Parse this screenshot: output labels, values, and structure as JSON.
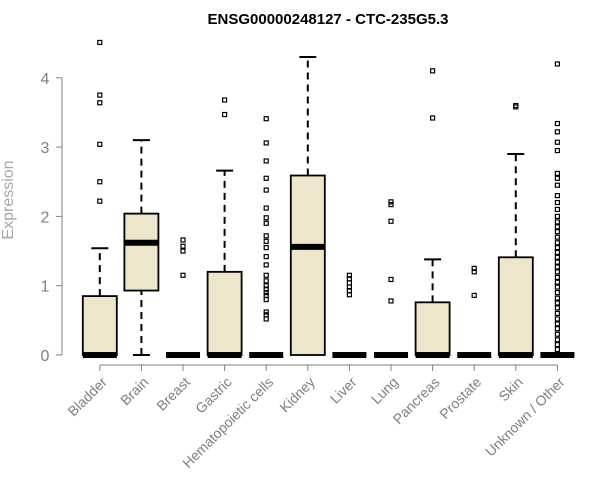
{
  "chart_data": {
    "type": "boxplot",
    "title": "ENSG00000248127 - CTC-235G5.3",
    "xlabel": "",
    "ylabel": "Expression",
    "ylim": [
      0,
      4.55
    ],
    "yticks": [
      0,
      1,
      2,
      3,
      4
    ],
    "box_color": "#ede6cc",
    "categories": [
      "Bladder",
      "Brain",
      "Breast",
      "Gastric",
      "Hematopoietic cells",
      "Kidney",
      "Liver",
      "Lung",
      "Pancreas",
      "Prostate",
      "Skin",
      "Unknown / Other"
    ],
    "boxes": [
      {
        "q1": 0,
        "median": 0,
        "q3": 0.85,
        "whisker_low": 0,
        "whisker_high": 1.54,
        "outliers": [
          2.22,
          2.5,
          3.04,
          3.64,
          3.75,
          4.51
        ]
      },
      {
        "q1": 0.93,
        "median": 1.62,
        "q3": 2.04,
        "whisker_low": 0,
        "whisker_high": 3.1,
        "outliers": []
      },
      {
        "q1": 0,
        "median": 0,
        "q3": 0,
        "whisker_low": 0,
        "whisker_high": 0,
        "outliers": [
          1.15,
          1.5,
          1.57,
          1.66
        ]
      },
      {
        "q1": 0,
        "median": 0,
        "q3": 1.2,
        "whisker_low": 0,
        "whisker_high": 2.66,
        "outliers": [
          3.47,
          3.68
        ]
      },
      {
        "q1": 0,
        "median": 0,
        "q3": 0,
        "whisker_low": 0,
        "whisker_high": 0,
        "outliers": [
          0.52,
          0.58,
          0.62,
          0.8,
          0.86,
          0.9,
          0.95,
          1.0,
          1.07,
          1.15,
          1.3,
          1.42,
          1.55,
          1.64,
          1.72,
          1.9,
          1.98,
          2.12,
          2.38,
          2.55,
          2.8,
          3.06,
          3.41
        ]
      },
      {
        "q1": 0,
        "median": 1.56,
        "q3": 2.59,
        "whisker_low": 0,
        "whisker_high": 4.3,
        "outliers": []
      },
      {
        "q1": 0,
        "median": 0,
        "q3": 0,
        "whisker_low": 0,
        "whisker_high": 0,
        "outliers": [
          0.87,
          0.93,
          0.98,
          1.04,
          1.1,
          1.15
        ]
      },
      {
        "q1": 0,
        "median": 0,
        "q3": 0,
        "whisker_low": 0,
        "whisker_high": 0,
        "outliers": [
          0.78,
          1.09,
          1.93,
          2.17,
          2.21
        ]
      },
      {
        "q1": 0,
        "median": 0,
        "q3": 0.76,
        "whisker_low": 0,
        "whisker_high": 1.38,
        "outliers": [
          3.42,
          4.1
        ]
      },
      {
        "q1": 0,
        "median": 0,
        "q3": 0,
        "whisker_low": 0,
        "whisker_high": 0,
        "outliers": [
          0.86,
          1.2,
          1.25
        ]
      },
      {
        "q1": 0,
        "median": 0,
        "q3": 1.41,
        "whisker_low": 0,
        "whisker_high": 2.9,
        "outliers": [
          3.58,
          3.6
        ]
      },
      {
        "q1": 0,
        "median": 0,
        "q3": 0,
        "whisker_low": 0,
        "whisker_high": 0,
        "outliers": [
          0.08,
          0.15,
          0.22,
          0.3,
          0.38,
          0.45,
          0.52,
          0.6,
          0.68,
          0.75,
          0.82,
          0.9,
          0.98,
          1.05,
          1.12,
          1.2,
          1.27,
          1.34,
          1.41,
          1.48,
          1.55,
          1.62,
          1.7,
          1.78,
          1.85,
          1.92,
          2.0,
          2.1,
          2.2,
          2.3,
          2.45,
          2.55,
          2.62,
          2.95,
          3.07,
          3.22,
          3.34,
          4.2
        ]
      }
    ]
  }
}
